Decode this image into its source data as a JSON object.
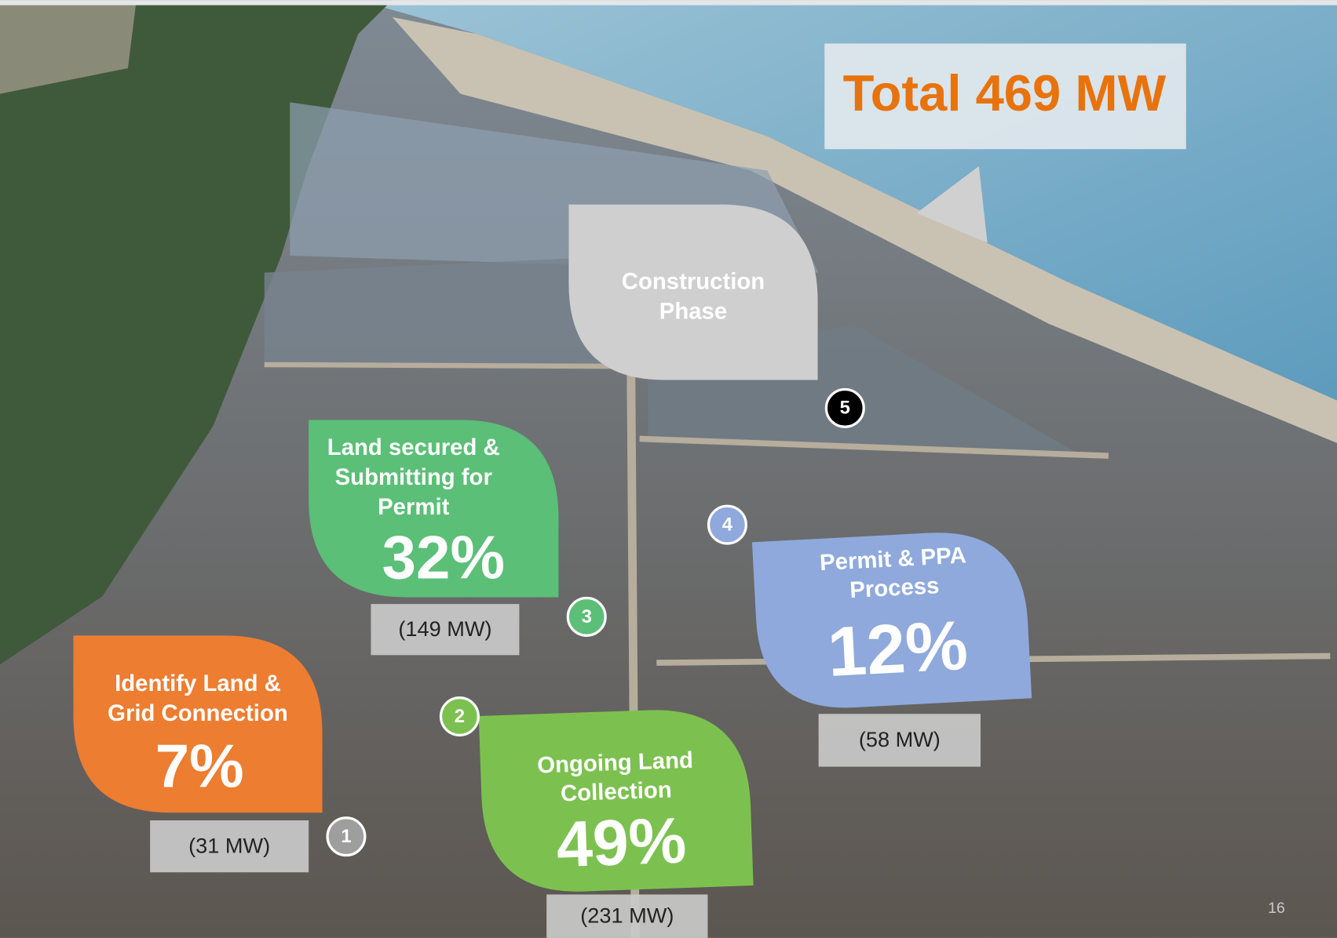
{
  "title": "Total 469 MW",
  "page_number": "16",
  "stages": [
    {
      "number": "1",
      "label_lines": [
        "Identify Land &",
        "Grid Connection"
      ],
      "percent": "7%",
      "capacity": "(31 MW)"
    },
    {
      "number": "2",
      "label_lines": [
        "Ongoing Land",
        "Collection"
      ],
      "percent": "49%",
      "capacity": "(231 MW)"
    },
    {
      "number": "3",
      "label_lines": [
        "Land secured &",
        "Submitting for",
        "Permit"
      ],
      "percent": "32%",
      "capacity": "(149 MW)"
    },
    {
      "number": "4",
      "label_lines": [
        "Permit & PPA",
        "Process"
      ],
      "percent": "12%",
      "capacity": "(58 MW)"
    },
    {
      "number": "5",
      "label_lines": [
        "Construction",
        "Phase"
      ]
    }
  ]
}
